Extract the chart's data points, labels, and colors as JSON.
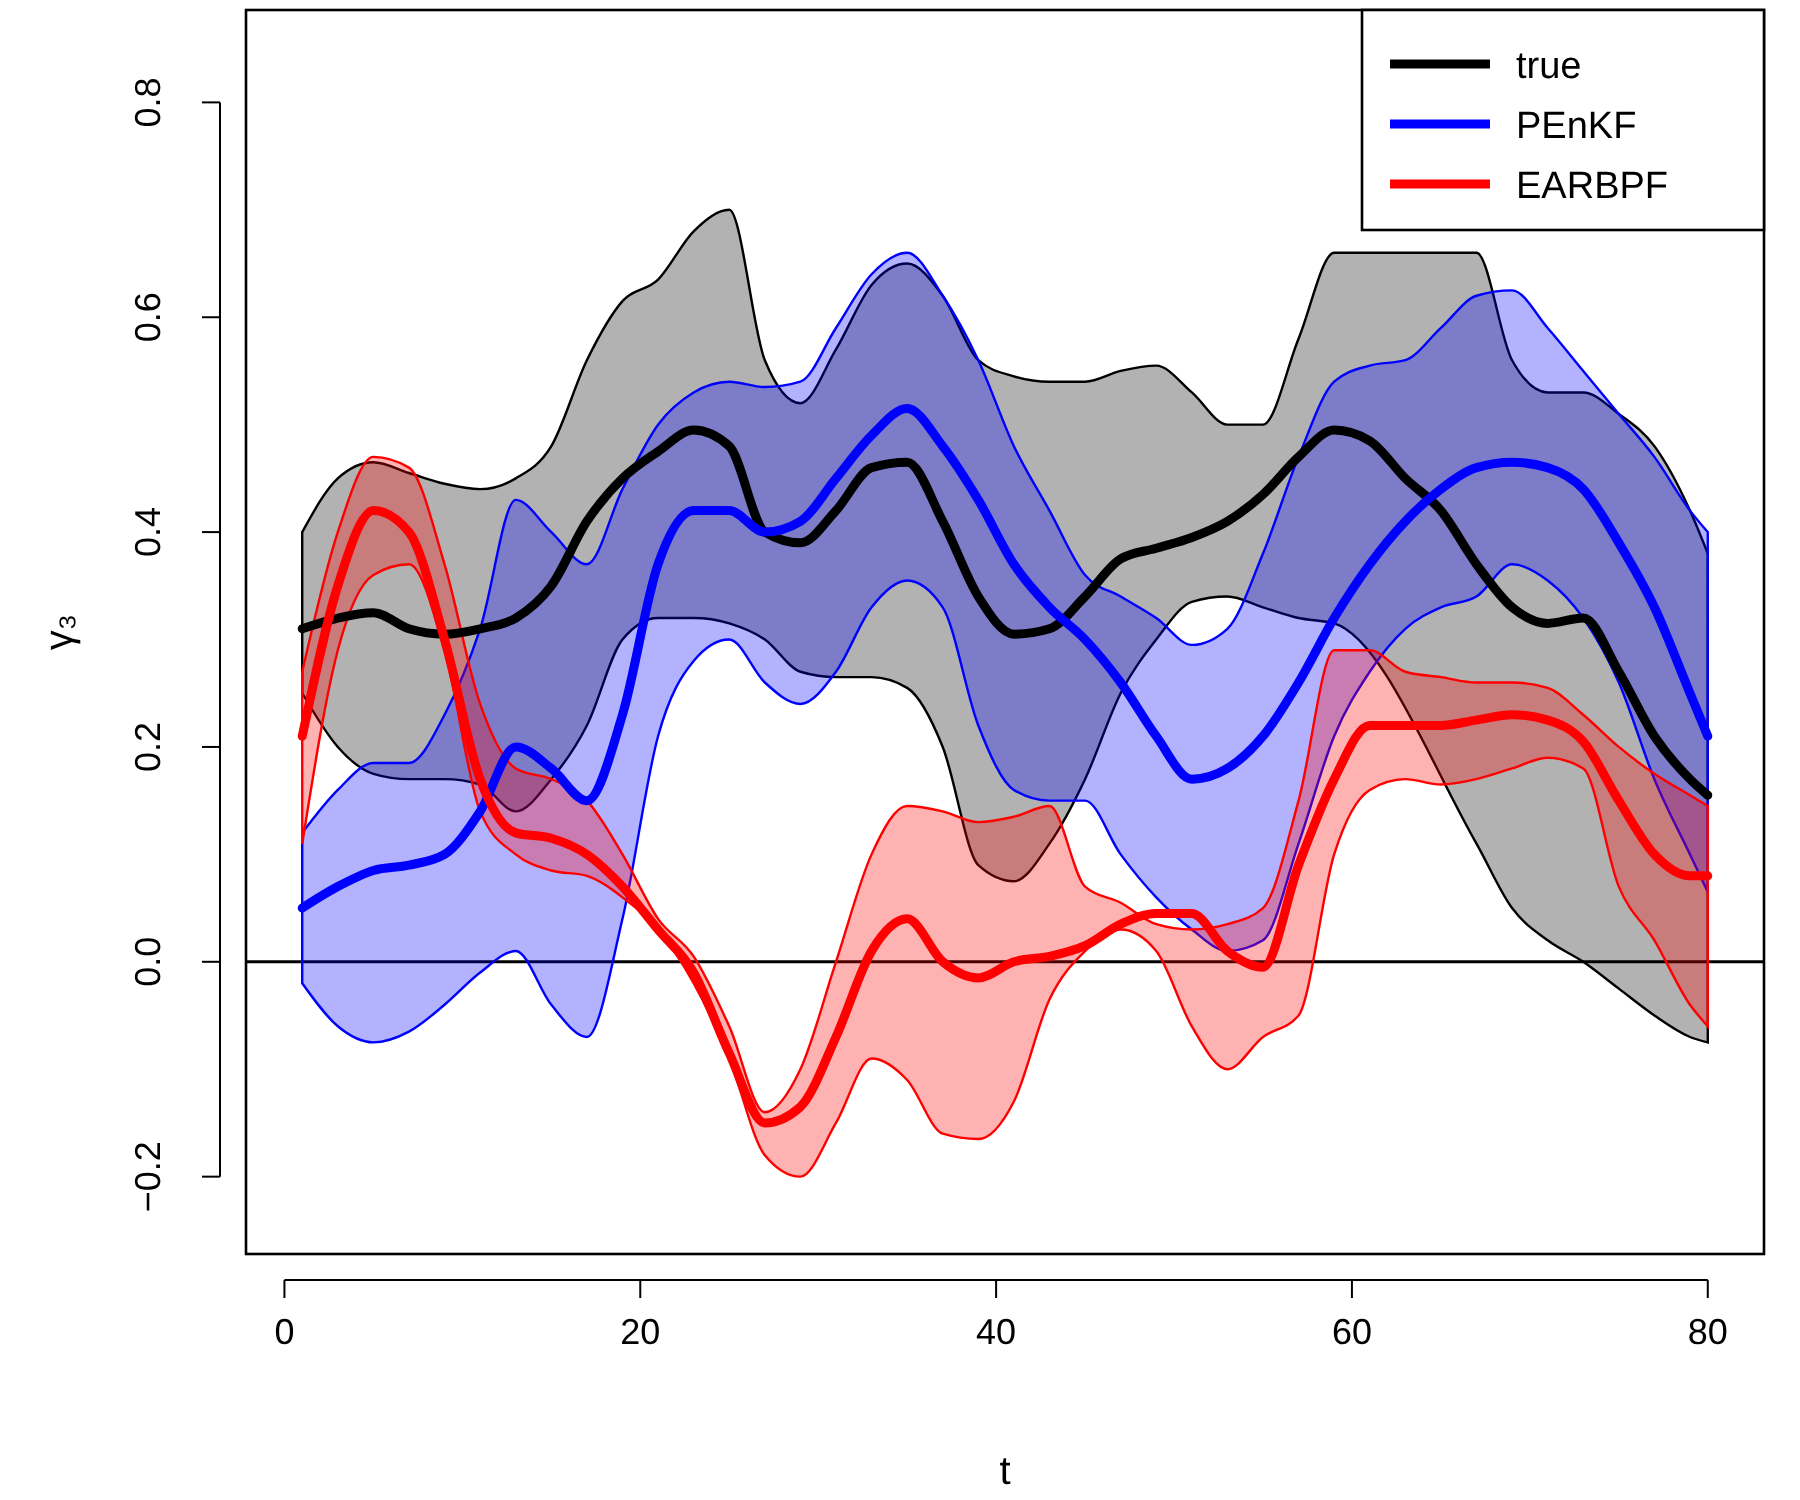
{
  "chart_data": {
    "type": "line",
    "xlabel": "t",
    "ylabel": "γ₃",
    "x": [
      1,
      3,
      5,
      7,
      9,
      11,
      13,
      15,
      17,
      19,
      21,
      23,
      25,
      27,
      29,
      31,
      33,
      35,
      37,
      39,
      41,
      43,
      45,
      47,
      49,
      51,
      53,
      55,
      57,
      59,
      61,
      63,
      65,
      67,
      69,
      71,
      73,
      75,
      77,
      79,
      80
    ],
    "series": [
      {
        "name": "true",
        "color": "#000000",
        "values": [
          0.31,
          0.32,
          0.325,
          0.31,
          0.305,
          0.31,
          0.32,
          0.35,
          0.41,
          0.45,
          0.475,
          0.495,
          0.48,
          0.4,
          0.39,
          0.42,
          0.46,
          0.465,
          0.41,
          0.34,
          0.305,
          0.31,
          0.34,
          0.375,
          0.385,
          0.395,
          0.41,
          0.435,
          0.47,
          0.495,
          0.485,
          0.45,
          0.42,
          0.37,
          0.33,
          0.315,
          0.32,
          0.27,
          0.21,
          0.17,
          0.155
        ],
        "upper": [
          0.4,
          0.45,
          0.465,
          0.455,
          0.445,
          0.44,
          0.45,
          0.48,
          0.56,
          0.615,
          0.635,
          0.68,
          0.7,
          0.56,
          0.52,
          0.57,
          0.63,
          0.65,
          0.62,
          0.56,
          0.545,
          0.54,
          0.54,
          0.55,
          0.555,
          0.53,
          0.5,
          0.5,
          0.58,
          0.66,
          null,
          null,
          null,
          0.66,
          0.56,
          0.53,
          0.53,
          0.51,
          0.48,
          0.42,
          0.38
        ],
        "lower": [
          0.25,
          0.2,
          0.175,
          0.17,
          0.17,
          0.165,
          0.14,
          0.17,
          0.22,
          0.3,
          0.32,
          0.32,
          0.315,
          0.3,
          0.27,
          0.265,
          0.265,
          0.255,
          0.2,
          0.09,
          0.075,
          0.11,
          0.17,
          0.25,
          0.3,
          0.335,
          0.34,
          0.33,
          0.32,
          0.315,
          null,
          null,
          null,
          0.11,
          0.05,
          0.02,
          0.0,
          -0.025,
          -0.05,
          -0.07,
          -0.075
        ]
      },
      {
        "name": "PEnKF",
        "color": "#0000ff",
        "values": [
          0.05,
          0.07,
          0.085,
          0.09,
          0.1,
          0.14,
          0.2,
          0.18,
          0.15,
          0.23,
          0.37,
          0.42,
          0.42,
          0.4,
          0.41,
          0.45,
          0.49,
          0.515,
          0.48,
          0.43,
          0.37,
          0.33,
          0.3,
          0.26,
          0.21,
          0.17,
          0.18,
          0.21,
          0.26,
          0.32,
          0.37,
          0.41,
          0.44,
          0.46,
          0.465,
          0.46,
          0.44,
          0.39,
          0.33,
          0.25,
          0.21
        ],
        "upper": [
          0.12,
          0.16,
          0.185,
          0.185,
          0.23,
          0.31,
          0.43,
          0.4,
          0.37,
          0.44,
          0.5,
          0.53,
          0.54,
          0.535,
          0.54,
          0.59,
          0.64,
          0.66,
          0.62,
          0.56,
          0.48,
          0.42,
          0.36,
          0.34,
          0.32,
          0.295,
          0.31,
          0.38,
          0.47,
          0.54,
          0.555,
          0.56,
          0.59,
          0.62,
          0.625,
          0.59,
          0.55,
          0.51,
          0.47,
          0.42,
          0.4
        ],
        "lower": [
          -0.02,
          -0.06,
          -0.075,
          -0.065,
          -0.04,
          -0.01,
          0.01,
          -0.04,
          -0.07,
          0.04,
          0.21,
          0.28,
          0.3,
          0.26,
          0.24,
          0.27,
          0.33,
          0.355,
          0.33,
          0.22,
          0.16,
          0.15,
          0.15,
          0.1,
          0.06,
          0.03,
          0.01,
          0.02,
          0.11,
          0.21,
          0.27,
          0.31,
          0.33,
          0.34,
          0.37,
          0.355,
          0.32,
          0.26,
          0.17,
          0.1,
          0.065
        ]
      },
      {
        "name": "EARBPF",
        "color": "#ff0000",
        "values": [
          0.21,
          0.35,
          0.42,
          0.4,
          0.3,
          0.17,
          0.12,
          0.115,
          0.1,
          0.07,
          0.03,
          -0.01,
          -0.085,
          -0.15,
          -0.135,
          -0.07,
          0.01,
          0.04,
          0.0,
          -0.015,
          0.0,
          0.005,
          0.015,
          0.035,
          0.045,
          0.045,
          0.01,
          -0.005,
          0.09,
          0.17,
          0.22,
          0.22,
          0.22,
          0.225,
          0.23,
          0.225,
          0.205,
          0.15,
          0.1,
          0.08,
          0.08
        ],
        "upper": [
          0.27,
          0.4,
          0.47,
          0.46,
          0.37,
          0.24,
          0.18,
          0.17,
          0.15,
          0.1,
          0.04,
          0.005,
          -0.06,
          -0.14,
          -0.1,
          0.0,
          0.1,
          0.145,
          0.14,
          0.13,
          0.135,
          0.145,
          0.07,
          0.055,
          0.035,
          0.03,
          0.035,
          0.05,
          0.15,
          0.29,
          0.29,
          0.27,
          0.265,
          0.26,
          0.26,
          0.255,
          0.23,
          0.2,
          0.175,
          0.155,
          0.145
        ],
        "lower": [
          0.11,
          0.29,
          0.36,
          0.37,
          0.29,
          0.14,
          0.1,
          0.085,
          0.08,
          0.06,
          0.03,
          -0.02,
          -0.09,
          -0.18,
          -0.2,
          -0.15,
          -0.09,
          -0.11,
          -0.16,
          -0.165,
          -0.13,
          -0.035,
          0.01,
          0.03,
          0.01,
          -0.06,
          -0.1,
          -0.07,
          -0.05,
          0.1,
          0.16,
          0.17,
          0.165,
          0.17,
          0.18,
          0.19,
          0.18,
          0.07,
          0.02,
          -0.04,
          -0.06
        ]
      }
    ],
    "xlim": [
      -2.16,
      83.16
    ],
    "ylim": [
      -0.272,
      0.886
    ],
    "xticks": [
      0,
      20,
      40,
      60,
      80
    ],
    "yticks": [
      {
        "value": -0.2,
        "label": "−0.2"
      },
      {
        "value": 0,
        "label": "0.0"
      },
      0.2,
      0.4,
      0.6,
      0.8
    ],
    "ref_lines": [
      {
        "axis": "y",
        "value": 0,
        "color": "#000000"
      }
    ],
    "legend": "top right",
    "grid": false,
    "marker": "none",
    "line_style": "solid"
  }
}
